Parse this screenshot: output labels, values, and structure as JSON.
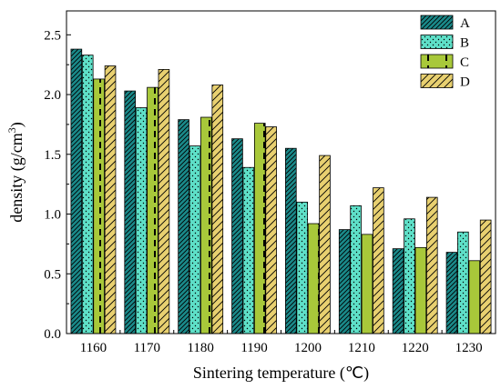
{
  "chart_data": {
    "type": "bar",
    "xlabel": "Sintering temperature (℃)",
    "ylabel": "density (g/cm",
    "ylabel_sup": "3",
    "ylabel_close": ")",
    "categories": [
      "1160",
      "1170",
      "1180",
      "1190",
      "1200",
      "1210",
      "1220",
      "1230"
    ],
    "ylim": [
      0,
      2.7
    ],
    "yticks": [
      "0.0",
      "0.5",
      "1.0",
      "1.5",
      "2.0",
      "2.5"
    ],
    "legend_position": "top-right",
    "series": [
      {
        "name": "A",
        "color": "#1a8a8a",
        "pattern": "dense-diagonal",
        "values": [
          2.38,
          2.03,
          1.79,
          1.63,
          1.55,
          0.87,
          0.71,
          0.68
        ]
      },
      {
        "name": "B",
        "color": "#5ee0c8",
        "pattern": "dots",
        "values": [
          2.33,
          1.89,
          1.57,
          1.39,
          1.1,
          1.07,
          0.96,
          0.85
        ]
      },
      {
        "name": "C",
        "color": "#a8c83a",
        "pattern": "vertical-dashes",
        "values": [
          2.13,
          2.06,
          1.81,
          1.76,
          0.92,
          0.83,
          0.72,
          0.61
        ]
      },
      {
        "name": "D",
        "color": "#e8d070",
        "pattern": "sparse-diagonal",
        "values": [
          2.24,
          2.21,
          2.08,
          1.73,
          1.49,
          1.22,
          1.14,
          0.95
        ]
      }
    ]
  }
}
